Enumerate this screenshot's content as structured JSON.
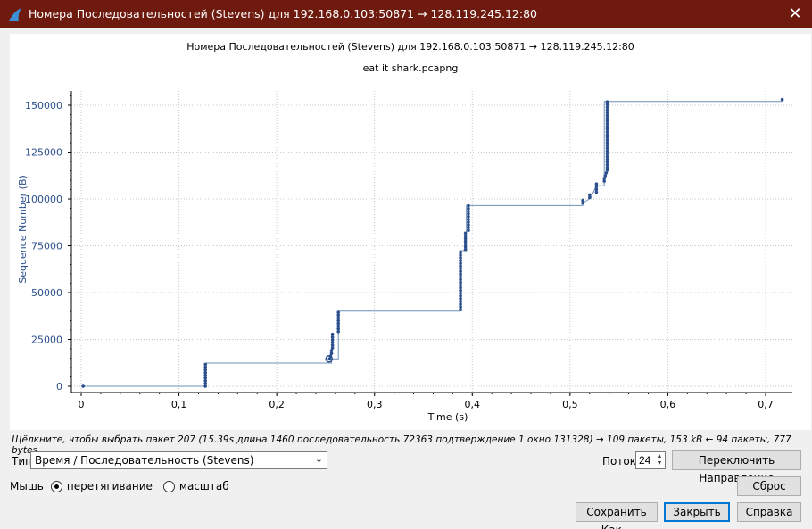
{
  "window": {
    "title": "Номера Последовательностей (Stevens) для 192.168.0.103:50871 → 128.119.245.12:80"
  },
  "chart_data": {
    "type": "scatter",
    "title": "Номера Последовательностей (Stevens) для 192.168.0.103:50871 → 128.119.245.12:80",
    "subtitle": "eat it shark.pcapng",
    "xlabel": "Time (s)",
    "ylabel": "Sequence Number (B)",
    "xlim": [
      0,
      0.72
    ],
    "ylim": [
      -3000,
      155000
    ],
    "xticks": [
      0,
      0.1,
      0.2,
      0.3,
      0.4,
      0.5,
      0.6,
      0.7
    ],
    "xtick_labels": [
      "0",
      "0,1",
      "0,2",
      "0,3",
      "0,4",
      "0,5",
      "0,6",
      "0,7"
    ],
    "yticks": [
      0,
      25000,
      50000,
      75000,
      100000,
      125000,
      150000
    ],
    "ytick_labels": [
      "0",
      "25000",
      "50000",
      "75000",
      "100000",
      "125000",
      "150000"
    ],
    "grid": true,
    "color": "#2a4f8c",
    "selected_point": {
      "x": 0.2535,
      "y": 14600
    },
    "step_line": [
      [
        0,
        0
      ],
      [
        0.127,
        0
      ],
      [
        0.127,
        12400
      ],
      [
        0.256,
        12400
      ],
      [
        0.256,
        14600
      ],
      [
        0.263,
        14600
      ],
      [
        0.263,
        40100
      ],
      [
        0.387,
        40100
      ],
      [
        0.387,
        72400
      ],
      [
        0.394,
        72400
      ],
      [
        0.394,
        96500
      ],
      [
        0.513,
        96500
      ],
      [
        0.513,
        97800
      ],
      [
        0.521,
        100500
      ],
      [
        0.527,
        107000
      ],
      [
        0.535,
        107000
      ],
      [
        0.535,
        152000
      ],
      [
        0.717,
        152000
      ]
    ],
    "points": [
      [
        0.002,
        0
      ],
      [
        0.127,
        0
      ],
      [
        0.127,
        1460
      ],
      [
        0.127,
        2920
      ],
      [
        0.127,
        4380
      ],
      [
        0.127,
        5840
      ],
      [
        0.127,
        7300
      ],
      [
        0.127,
        8760
      ],
      [
        0.127,
        10220
      ],
      [
        0.127,
        11680
      ],
      [
        0.254,
        14600
      ],
      [
        0.255,
        16060
      ],
      [
        0.256,
        17520
      ],
      [
        0.256,
        18980
      ],
      [
        0.257,
        20440
      ],
      [
        0.257,
        21900
      ],
      [
        0.257,
        23360
      ],
      [
        0.257,
        24820
      ],
      [
        0.257,
        26280
      ],
      [
        0.257,
        27740
      ],
      [
        0.263,
        29200
      ],
      [
        0.263,
        30660
      ],
      [
        0.263,
        32120
      ],
      [
        0.263,
        33580
      ],
      [
        0.263,
        35040
      ],
      [
        0.263,
        36500
      ],
      [
        0.263,
        37960
      ],
      [
        0.263,
        39420
      ],
      [
        0.388,
        40880
      ],
      [
        0.388,
        42340
      ],
      [
        0.388,
        43800
      ],
      [
        0.388,
        45260
      ],
      [
        0.388,
        46720
      ],
      [
        0.388,
        48180
      ],
      [
        0.388,
        49640
      ],
      [
        0.388,
        51100
      ],
      [
        0.388,
        52560
      ],
      [
        0.388,
        54020
      ],
      [
        0.388,
        55480
      ],
      [
        0.388,
        56940
      ],
      [
        0.388,
        58400
      ],
      [
        0.388,
        59860
      ],
      [
        0.388,
        61320
      ],
      [
        0.388,
        62780
      ],
      [
        0.388,
        64240
      ],
      [
        0.388,
        65700
      ],
      [
        0.388,
        67160
      ],
      [
        0.388,
        68620
      ],
      [
        0.388,
        70080
      ],
      [
        0.388,
        71540
      ],
      [
        0.393,
        73000
      ],
      [
        0.393,
        74460
      ],
      [
        0.393,
        75920
      ],
      [
        0.393,
        77380
      ],
      [
        0.393,
        78840
      ],
      [
        0.393,
        80300
      ],
      [
        0.393,
        81760
      ],
      [
        0.396,
        83220
      ],
      [
        0.396,
        84680
      ],
      [
        0.396,
        86140
      ],
      [
        0.396,
        87600
      ],
      [
        0.396,
        89060
      ],
      [
        0.396,
        90520
      ],
      [
        0.396,
        91980
      ],
      [
        0.396,
        93440
      ],
      [
        0.396,
        94900
      ],
      [
        0.396,
        96360
      ],
      [
        0.513,
        97800
      ],
      [
        0.513,
        99260
      ],
      [
        0.52,
        100720
      ],
      [
        0.52,
        102180
      ],
      [
        0.527,
        103640
      ],
      [
        0.527,
        105100
      ],
      [
        0.527,
        106560
      ],
      [
        0.527,
        108020
      ],
      [
        0.535,
        109480
      ],
      [
        0.535,
        110940
      ],
      [
        0.536,
        112400
      ],
      [
        0.537,
        113860
      ],
      [
        0.538,
        115320
      ],
      [
        0.538,
        116780
      ],
      [
        0.538,
        118240
      ],
      [
        0.538,
        119700
      ],
      [
        0.538,
        121160
      ],
      [
        0.538,
        122620
      ],
      [
        0.538,
        124080
      ],
      [
        0.538,
        125540
      ],
      [
        0.538,
        127000
      ],
      [
        0.538,
        128460
      ],
      [
        0.538,
        129920
      ],
      [
        0.538,
        131380
      ],
      [
        0.538,
        132840
      ],
      [
        0.538,
        134300
      ],
      [
        0.538,
        135760
      ],
      [
        0.538,
        137220
      ],
      [
        0.538,
        138680
      ],
      [
        0.538,
        140140
      ],
      [
        0.538,
        141600
      ],
      [
        0.538,
        143060
      ],
      [
        0.538,
        144520
      ],
      [
        0.538,
        145980
      ],
      [
        0.538,
        147440
      ],
      [
        0.538,
        148900
      ],
      [
        0.538,
        150360
      ],
      [
        0.538,
        151820
      ],
      [
        0.717,
        153000
      ]
    ]
  },
  "status_text": "Щёлкните, чтобы выбрать пакет 207 (15.39s длина 1460 последовательность 72363 подтверждение 1 окно 131328) → 109 пакеты, 153 kB ← 94 пакеты, 777 bytes",
  "controls": {
    "type_label": "Тип",
    "type_value": "Время / Последовательность (Stevens)",
    "stream_label": "Поток",
    "stream_value": "24",
    "switch_direction": "Переключить Направление",
    "reset": "Сброс",
    "mouse_label": "Мышь",
    "drag_label": "перетягивание",
    "zoom_label": "масштаб",
    "save_as": "Сохранить Как...",
    "close": "Закрыть",
    "help": "Справка"
  }
}
